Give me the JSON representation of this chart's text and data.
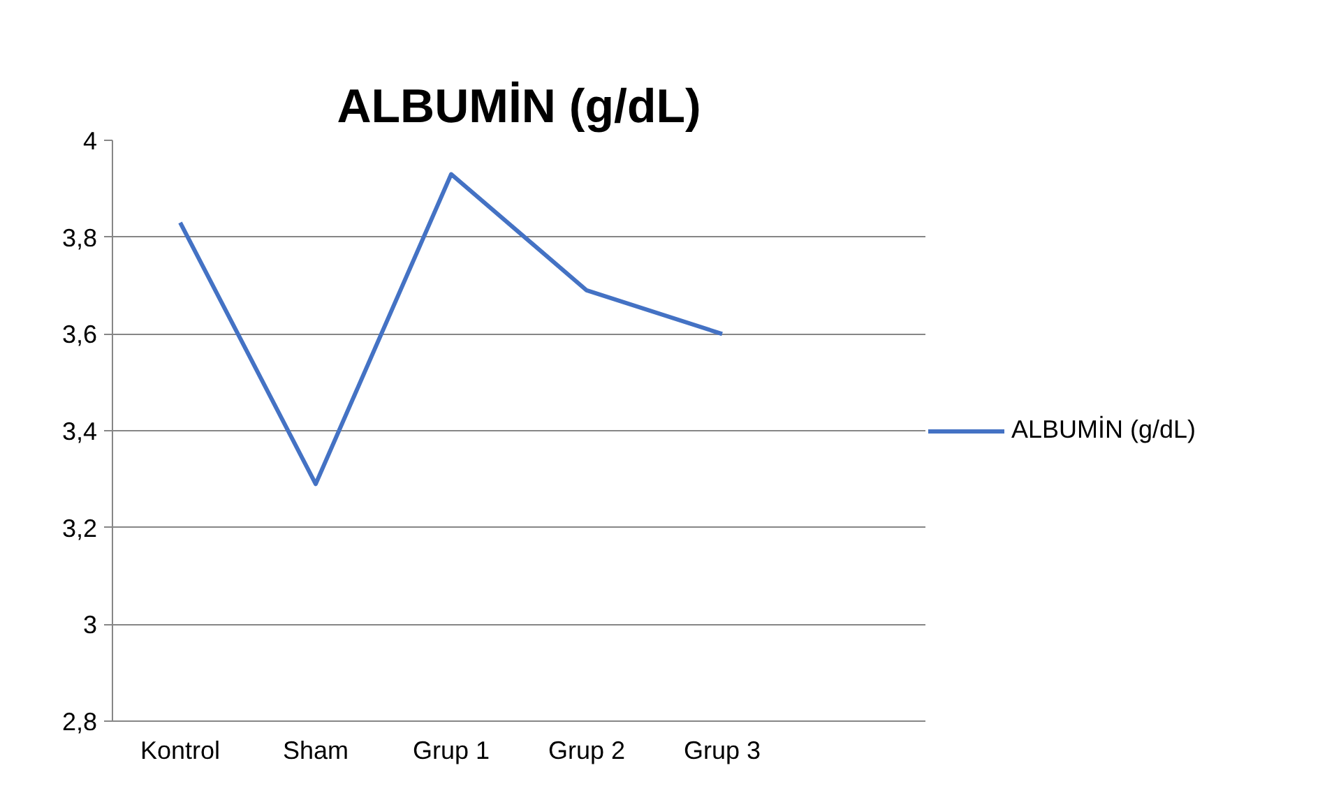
{
  "chart_data": {
    "type": "line",
    "title": "ALBUMİN (g/dL)",
    "categories": [
      "Kontrol",
      "Sham",
      "Grup 1",
      "Grup 2",
      "Grup 3",
      null
    ],
    "series": [
      {
        "name": "ALBUMİN (g/dL)",
        "color": "#4472c4",
        "values": [
          3.83,
          3.29,
          3.93,
          3.69,
          3.6,
          null
        ]
      }
    ],
    "ylim": [
      2.8,
      4
    ],
    "yticks": [
      {
        "value": 2.8,
        "label": "2,8"
      },
      3,
      {
        "value": 3.2,
        "label": "3,2"
      },
      {
        "value": 3.4,
        "label": "3,4"
      },
      {
        "value": 3.6,
        "label": "3,6"
      },
      {
        "value": 3.8,
        "label": "3,8"
      },
      4
    ],
    "grid": "y",
    "legend": "right",
    "marker": "none",
    "line_style": "solid"
  }
}
